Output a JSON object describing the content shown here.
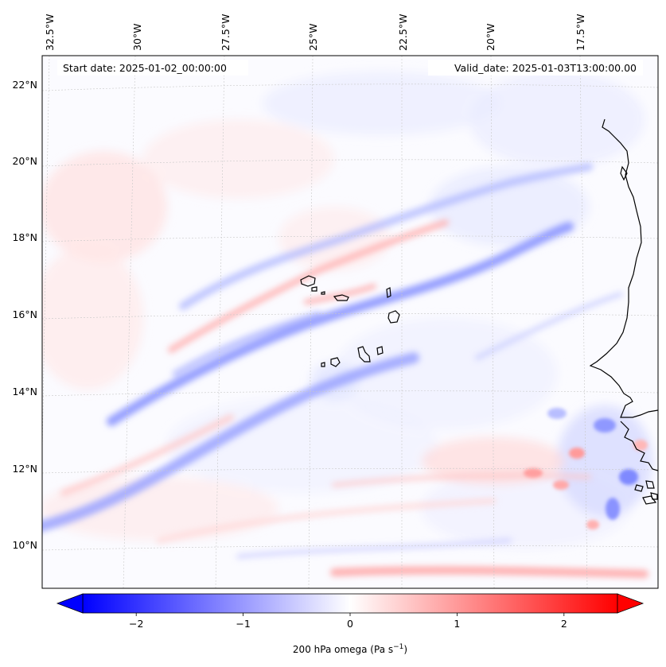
{
  "map": {
    "start_date_label": "Start date: 2025-01-02_00:00:00",
    "valid_date_label": "Valid_date: 2025-01-03T13:00:00.00",
    "lon_ticks": [
      "32.5°W",
      "30°W",
      "27.5°W",
      "25°W",
      "22.5°W",
      "20°W",
      "17.5°W"
    ],
    "lat_ticks": [
      "22°N",
      "20°N",
      "18°N",
      "16°N",
      "14°N",
      "12°N",
      "10°N"
    ],
    "extent": {
      "lon_min": -33.0,
      "lon_max": -15.0,
      "lat_min": 8.8,
      "lat_max": 22.8
    }
  },
  "colorbar": {
    "label_main": "200 hPa omega (Pa s",
    "label_exp": "−1",
    "label_close": ")",
    "ticks": [
      "−2",
      "−1",
      "0",
      "1",
      "2"
    ],
    "tick_values": [
      -2,
      -1,
      0,
      1,
      2
    ],
    "range": [
      -2.5,
      2.5
    ],
    "colors": {
      "negative": "#0000ff",
      "zero": "#ffffff",
      "positive": "#ff0000"
    }
  }
}
